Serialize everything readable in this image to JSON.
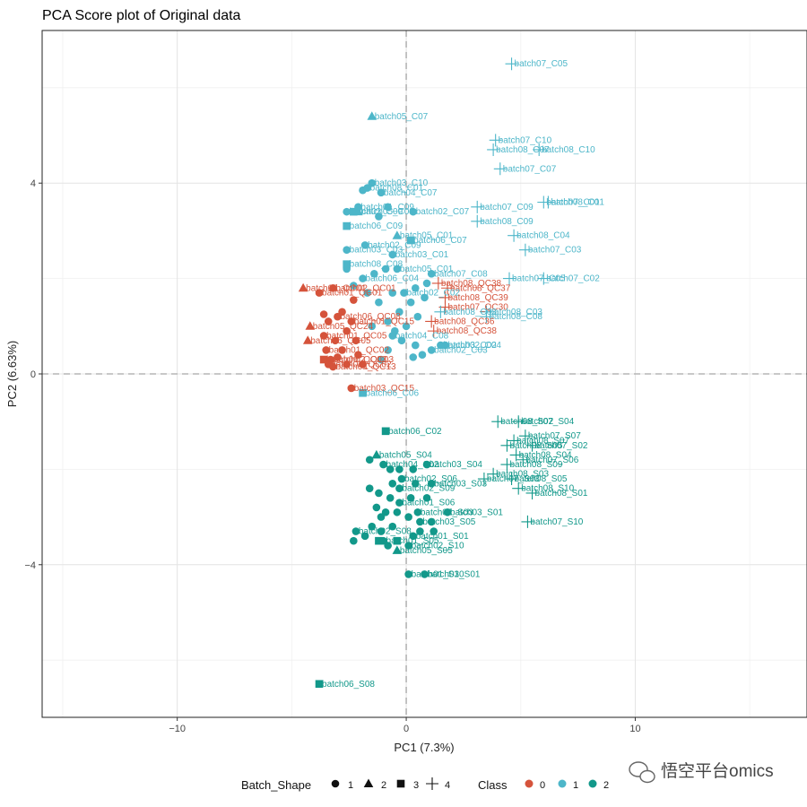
{
  "chart_data": {
    "type": "scatter",
    "title": "PCA Score plot of Original data",
    "xlabel": "PC1 (7.3%)",
    "ylabel": "PC2 (6.63%)",
    "xlim": [
      -15.9,
      17.5
    ],
    "ylim": [
      -7.2,
      7.2
    ],
    "xticks": [
      -10,
      0,
      10
    ],
    "yticks": [
      -4,
      0,
      4
    ],
    "grid": true,
    "reference_lines": [
      0,
      0
    ],
    "colors": {
      "0": "#d5533b",
      "1": "#4db6c9",
      "2": "#12988a"
    },
    "legend": {
      "placement": "bottom",
      "shape_title": "Batch_Shape",
      "shape_entries": [
        "1",
        "2",
        "3",
        "4"
      ],
      "class_title": "Class",
      "class_entries": [
        "0",
        "1",
        "2"
      ]
    },
    "watermark": "悟空平台omics",
    "points": [
      {
        "x": 4.6,
        "y": 6.5,
        "shape": 4,
        "class": 1,
        "label": "batch07_C05"
      },
      {
        "x": -1.5,
        "y": 5.4,
        "shape": 2,
        "class": 1,
        "label": "batch05_C07"
      },
      {
        "x": 3.9,
        "y": 4.9,
        "shape": 4,
        "class": 1,
        "label": "batch07_C10"
      },
      {
        "x": 3.8,
        "y": 4.7,
        "shape": 4,
        "class": 1,
        "label": "batch08_C07"
      },
      {
        "x": 5.8,
        "y": 4.7,
        "shape": 4,
        "class": 1,
        "label": "batch08_C10"
      },
      {
        "x": 4.1,
        "y": 4.3,
        "shape": 4,
        "class": 1,
        "label": "batch07_C07"
      },
      {
        "x": -1.5,
        "y": 4.0,
        "shape": 1,
        "class": 1,
        "label": "batch03_C10"
      },
      {
        "x": -1.7,
        "y": 3.9,
        "shape": 1,
        "class": 1,
        "label": "batch08_C01"
      },
      {
        "x": -1.1,
        "y": 3.8,
        "shape": 1,
        "class": 1,
        "label": "batch04_C07"
      },
      {
        "x": 6.0,
        "y": 3.6,
        "shape": 4,
        "class": 1,
        "label": "batch07_C01"
      },
      {
        "x": 6.2,
        "y": 3.6,
        "shape": 4,
        "class": 1,
        "label": "batch08_C01"
      },
      {
        "x": 3.1,
        "y": 3.5,
        "shape": 4,
        "class": 1,
        "label": "batch07_C09"
      },
      {
        "x": -2.1,
        "y": 3.5,
        "shape": 1,
        "class": 1,
        "label": "batch01_C09"
      },
      {
        "x": -2.6,
        "y": 3.4,
        "shape": 1,
        "class": 1,
        "label": "batch03_C09"
      },
      {
        "x": 0.3,
        "y": 3.4,
        "shape": 1,
        "class": 1,
        "label": "batch02_C07"
      },
      {
        "x": -2.1,
        "y": 3.4,
        "shape": 2,
        "class": 1,
        "label": "batch05_C09"
      },
      {
        "x": 3.1,
        "y": 3.2,
        "shape": 4,
        "class": 1,
        "label": "batch08_C09"
      },
      {
        "x": -2.6,
        "y": 3.1,
        "shape": 3,
        "class": 1,
        "label": "batch06_C09"
      },
      {
        "x": 4.7,
        "y": 2.9,
        "shape": 4,
        "class": 1,
        "label": "batch08_C04"
      },
      {
        "x": -0.4,
        "y": 2.9,
        "shape": 2,
        "class": 1,
        "label": "batch05_C01"
      },
      {
        "x": 0.2,
        "y": 2.8,
        "shape": 3,
        "class": 1,
        "label": "batch06_C07"
      },
      {
        "x": -1.8,
        "y": 2.7,
        "shape": 1,
        "class": 1,
        "label": "batch02_C09"
      },
      {
        "x": 5.2,
        "y": 2.6,
        "shape": 4,
        "class": 1,
        "label": "batch07_C03"
      },
      {
        "x": -2.6,
        "y": 2.6,
        "shape": 1,
        "class": 1,
        "label": "batch03_C03"
      },
      {
        "x": -0.6,
        "y": 2.5,
        "shape": 1,
        "class": 1,
        "label": "batch03_C01"
      },
      {
        "x": -2.6,
        "y": 2.3,
        "shape": 3,
        "class": 1,
        "label": "batch08_C08"
      },
      {
        "x": -0.4,
        "y": 2.2,
        "shape": 1,
        "class": 1,
        "label": "batch05_C01"
      },
      {
        "x": 1.1,
        "y": 2.1,
        "shape": 1,
        "class": 1,
        "label": "batch07_C08"
      },
      {
        "x": 4.5,
        "y": 2.0,
        "shape": 4,
        "class": 1,
        "label": "batch07_C05"
      },
      {
        "x": 6.0,
        "y": 2.0,
        "shape": 4,
        "class": 1,
        "label": "batch07_C02"
      },
      {
        "x": -1.9,
        "y": 2.0,
        "shape": 1,
        "class": 1,
        "label": "batch06_C04"
      },
      {
        "x": 1.4,
        "y": 1.9,
        "shape": 4,
        "class": 0,
        "label": "batch08_QC38"
      },
      {
        "x": 1.8,
        "y": 1.8,
        "shape": 4,
        "class": 0,
        "label": "batch08_QC37"
      },
      {
        "x": -4.5,
        "y": 1.8,
        "shape": 2,
        "class": 0,
        "label": "batch05_QC01"
      },
      {
        "x": -3.2,
        "y": 1.8,
        "shape": 1,
        "class": 0,
        "label": "batch02_QC01"
      },
      {
        "x": -3.8,
        "y": 1.7,
        "shape": 1,
        "class": 0,
        "label": "batch01_QC01"
      },
      {
        "x": -0.1,
        "y": 1.7,
        "shape": 1,
        "class": 1,
        "label": "batch02_C02"
      },
      {
        "x": 1.7,
        "y": 1.6,
        "shape": 4,
        "class": 0,
        "label": "batch08_QC39"
      },
      {
        "x": 1.7,
        "y": 1.4,
        "shape": 4,
        "class": 0,
        "label": "batch07_QC30"
      },
      {
        "x": 1.5,
        "y": 1.3,
        "shape": 4,
        "class": 1,
        "label": "batch08_C03"
      },
      {
        "x": 3.5,
        "y": 1.3,
        "shape": 4,
        "class": 1,
        "label": "batch08_C03"
      },
      {
        "x": 3.5,
        "y": 1.2,
        "shape": 4,
        "class": 1,
        "label": "batch08_C08"
      },
      {
        "x": -3.0,
        "y": 1.2,
        "shape": 1,
        "class": 0,
        "label": "batch06_QC08"
      },
      {
        "x": -2.4,
        "y": 1.1,
        "shape": 1,
        "class": 0,
        "label": "batch01_QC15"
      },
      {
        "x": -4.2,
        "y": 1.0,
        "shape": 2,
        "class": 0,
        "label": "batch05_QC24"
      },
      {
        "x": 1.1,
        "y": 1.1,
        "shape": 4,
        "class": 0,
        "label": "batch08_QC36"
      },
      {
        "x": 1.2,
        "y": 0.9,
        "shape": 4,
        "class": 0,
        "label": "batch08_QC38"
      },
      {
        "x": -0.6,
        "y": 0.8,
        "shape": 1,
        "class": 1,
        "label": "batch04_C08"
      },
      {
        "x": -3.6,
        "y": 0.8,
        "shape": 1,
        "class": 0,
        "label": "batch01_QC05"
      },
      {
        "x": -4.3,
        "y": 0.7,
        "shape": 2,
        "class": 0,
        "label": "batch05_QC05"
      },
      {
        "x": 1.5,
        "y": 0.6,
        "shape": 1,
        "class": 1,
        "label": "batch03_C02"
      },
      {
        "x": 1.7,
        "y": 0.6,
        "shape": 1,
        "class": 1,
        "label": "batch02_C04"
      },
      {
        "x": 1.1,
        "y": 0.5,
        "shape": 1,
        "class": 1,
        "label": "batch02_C03"
      },
      {
        "x": -3.5,
        "y": 0.5,
        "shape": 1,
        "class": 0,
        "label": "batch01_QC02"
      },
      {
        "x": -3.6,
        "y": 0.3,
        "shape": 3,
        "class": 0,
        "label": "batch06_QC03"
      },
      {
        "x": -3.3,
        "y": 0.3,
        "shape": 1,
        "class": 0,
        "label": "batch02_QC03"
      },
      {
        "x": -3.4,
        "y": 0.2,
        "shape": 1,
        "class": 0,
        "label": "batch03_QC02"
      },
      {
        "x": -3.2,
        "y": 0.15,
        "shape": 1,
        "class": 0,
        "label": "batch04_QC13"
      },
      {
        "x": -2.4,
        "y": -0.3,
        "shape": 1,
        "class": 0,
        "label": "batch03_QC15"
      },
      {
        "x": -1.9,
        "y": -0.4,
        "shape": 3,
        "class": 1,
        "label": "batch06_C06"
      },
      {
        "x": -0.9,
        "y": -1.2,
        "shape": 3,
        "class": 2,
        "label": "batch06_C02"
      },
      {
        "x": 4.0,
        "y": -1.0,
        "shape": 4,
        "class": 2,
        "label": "batch08_S02"
      },
      {
        "x": 4.9,
        "y": -1.0,
        "shape": 4,
        "class": 2,
        "label": "batch07_S04"
      },
      {
        "x": 5.2,
        "y": -1.3,
        "shape": 4,
        "class": 2,
        "label": "batch07_S07"
      },
      {
        "x": 4.7,
        "y": -1.4,
        "shape": 4,
        "class": 2,
        "label": "batch08_S07"
      },
      {
        "x": 5.5,
        "y": -1.5,
        "shape": 4,
        "class": 2,
        "label": "batch07_S02"
      },
      {
        "x": 4.4,
        "y": -1.5,
        "shape": 4,
        "class": 2,
        "label": "batch08_S05"
      },
      {
        "x": 4.8,
        "y": -1.7,
        "shape": 4,
        "class": 2,
        "label": "batch08_S04"
      },
      {
        "x": 5.1,
        "y": -1.8,
        "shape": 4,
        "class": 2,
        "label": "batch07_S06"
      },
      {
        "x": 4.4,
        "y": -1.9,
        "shape": 4,
        "class": 2,
        "label": "batch08_S09"
      },
      {
        "x": -1.3,
        "y": -1.7,
        "shape": 2,
        "class": 2,
        "label": "batch05_S04"
      },
      {
        "x": -1.0,
        "y": -1.9,
        "shape": 1,
        "class": 2,
        "label": "batch04_S02"
      },
      {
        "x": 0.9,
        "y": -1.9,
        "shape": 1,
        "class": 2,
        "label": "batch03_S04"
      },
      {
        "x": 3.8,
        "y": -2.1,
        "shape": 4,
        "class": 2,
        "label": "batch08_S03"
      },
      {
        "x": 3.4,
        "y": -2.2,
        "shape": 4,
        "class": 2,
        "label": "batch07_S03"
      },
      {
        "x": 4.6,
        "y": -2.2,
        "shape": 4,
        "class": 2,
        "label": "batch08_S05"
      },
      {
        "x": -0.2,
        "y": -2.2,
        "shape": 1,
        "class": 2,
        "label": "batch02_S06"
      },
      {
        "x": 1.1,
        "y": -2.3,
        "shape": 1,
        "class": 2,
        "label": "batch03_S03"
      },
      {
        "x": -0.3,
        "y": -2.4,
        "shape": 1,
        "class": 2,
        "label": "batch02_S09"
      },
      {
        "x": 4.9,
        "y": -2.4,
        "shape": 4,
        "class": 2,
        "label": "batch08_S10"
      },
      {
        "x": 5.5,
        "y": -2.5,
        "shape": 4,
        "class": 2,
        "label": "batch08_S01"
      },
      {
        "x": -0.3,
        "y": -2.7,
        "shape": 1,
        "class": 2,
        "label": "batch01_S06"
      },
      {
        "x": 1.8,
        "y": -2.9,
        "shape": 1,
        "class": 2,
        "label": "batch03_S01"
      },
      {
        "x": 0.5,
        "y": -2.9,
        "shape": 1,
        "class": 2,
        "label": "batch02_S03"
      },
      {
        "x": 0.6,
        "y": -3.1,
        "shape": 1,
        "class": 2,
        "label": "batch03_S05"
      },
      {
        "x": 5.3,
        "y": -3.1,
        "shape": 4,
        "class": 2,
        "label": "batch07_S10"
      },
      {
        "x": -2.2,
        "y": -3.3,
        "shape": 1,
        "class": 2,
        "label": "batch02_S08"
      },
      {
        "x": 0.3,
        "y": -3.4,
        "shape": 1,
        "class": 2,
        "label": "batch01_S01"
      },
      {
        "x": -1.0,
        "y": -3.5,
        "shape": 1,
        "class": 2,
        "label": "batch01_S05"
      },
      {
        "x": 0.1,
        "y": -3.6,
        "shape": 1,
        "class": 2,
        "label": "batch02_S10"
      },
      {
        "x": -0.4,
        "y": -3.7,
        "shape": 2,
        "class": 2,
        "label": "batch05_S05"
      },
      {
        "x": 0.1,
        "y": -4.2,
        "shape": 1,
        "class": 2,
        "label": "batch01_S10"
      },
      {
        "x": 0.8,
        "y": -4.2,
        "shape": 1,
        "class": 2,
        "label": "batch03_S01"
      },
      {
        "x": -3.8,
        "y": -6.5,
        "shape": 3,
        "class": 2,
        "label": "batch06_S08"
      }
    ],
    "filler_points": [
      [
        -1.9,
        3.85,
        1,
        1
      ],
      [
        -2.3,
        3.4,
        3,
        1
      ],
      [
        -1.2,
        3.3,
        1,
        1
      ],
      [
        -0.8,
        3.5,
        1,
        1
      ],
      [
        -2.6,
        2.2,
        1,
        1
      ],
      [
        -1.4,
        2.1,
        1,
        1
      ],
      [
        -0.9,
        2.2,
        1,
        1
      ],
      [
        -2.3,
        1.85,
        1,
        1
      ],
      [
        -1.7,
        1.7,
        1,
        1
      ],
      [
        -0.6,
        1.7,
        1,
        1
      ],
      [
        0.4,
        1.8,
        1,
        1
      ],
      [
        0.9,
        1.9,
        1,
        1
      ],
      [
        0.2,
        1.5,
        1,
        1
      ],
      [
        0.8,
        1.6,
        1,
        1
      ],
      [
        -1.2,
        1.5,
        1,
        1
      ],
      [
        -0.3,
        1.3,
        1,
        1
      ],
      [
        0.5,
        1.2,
        1,
        1
      ],
      [
        -0.8,
        1.1,
        1,
        1
      ],
      [
        -1.5,
        1.0,
        1,
        1
      ],
      [
        0.0,
        1.0,
        1,
        1
      ],
      [
        -0.2,
        0.7,
        1,
        1
      ],
      [
        0.4,
        0.6,
        1,
        1
      ],
      [
        -0.8,
        0.5,
        1,
        1
      ],
      [
        0.3,
        0.35,
        1,
        1
      ],
      [
        -1.1,
        0.3,
        1,
        1
      ],
      [
        0.7,
        0.4,
        1,
        1
      ],
      [
        -0.5,
        0.9,
        1,
        1
      ],
      [
        -2.8,
        1.3,
        1,
        0
      ],
      [
        -3.4,
        1.1,
        1,
        0
      ],
      [
        -2.6,
        0.9,
        1,
        0
      ],
      [
        -3.1,
        0.7,
        1,
        0
      ],
      [
        -2.2,
        0.7,
        1,
        0
      ],
      [
        -2.8,
        0.5,
        1,
        0
      ],
      [
        -2.1,
        0.4,
        1,
        0
      ],
      [
        -2.6,
        0.2,
        1,
        0
      ],
      [
        -1.9,
        0.2,
        1,
        0
      ],
      [
        -3.6,
        1.25,
        1,
        0
      ],
      [
        -2.3,
        1.55,
        1,
        0
      ],
      [
        -3.0,
        0.35,
        1,
        0
      ],
      [
        -1.6,
        -1.8,
        1,
        2
      ],
      [
        -0.7,
        -2.0,
        1,
        2
      ],
      [
        -0.3,
        -2.0,
        1,
        2
      ],
      [
        0.3,
        -2.0,
        1,
        2
      ],
      [
        -0.6,
        -2.3,
        1,
        2
      ],
      [
        -1.6,
        -2.4,
        1,
        2
      ],
      [
        -1.2,
        -2.5,
        1,
        2
      ],
      [
        -0.7,
        -2.6,
        1,
        2
      ],
      [
        0.2,
        -2.6,
        1,
        2
      ],
      [
        0.9,
        -2.6,
        1,
        2
      ],
      [
        -1.3,
        -2.8,
        1,
        2
      ],
      [
        -0.9,
        -2.9,
        1,
        2
      ],
      [
        -0.4,
        -2.9,
        1,
        2
      ],
      [
        0.1,
        -3.0,
        1,
        2
      ],
      [
        1.1,
        -3.1,
        1,
        2
      ],
      [
        -1.5,
        -3.2,
        1,
        2
      ],
      [
        -1.1,
        -3.3,
        1,
        2
      ],
      [
        -0.6,
        -3.2,
        1,
        2
      ],
      [
        0.6,
        -3.3,
        1,
        2
      ],
      [
        1.2,
        -3.3,
        1,
        2
      ],
      [
        -1.8,
        -3.4,
        1,
        2
      ],
      [
        -0.8,
        -3.6,
        1,
        2
      ],
      [
        -1.1,
        -3.0,
        1,
        2
      ],
      [
        0.4,
        -2.3,
        1,
        2
      ],
      [
        -0.4,
        -3.5,
        3,
        2
      ],
      [
        -1.2,
        -3.5,
        3,
        2
      ],
      [
        -2.3,
        -3.5,
        1,
        2
      ]
    ]
  }
}
